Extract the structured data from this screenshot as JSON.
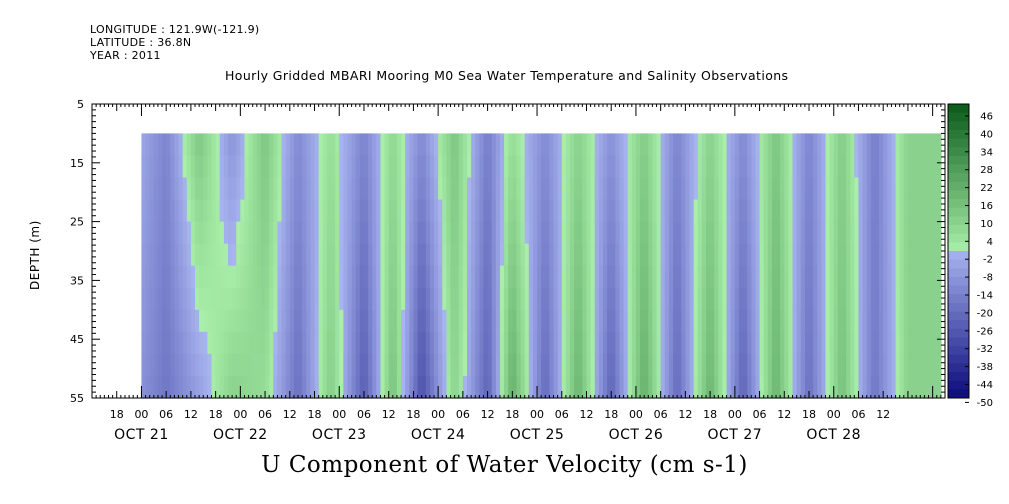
{
  "header": {
    "longitude": "LONGITUDE : 121.9W(-121.9)",
    "latitude": "LATITUDE : 36.8N",
    "year": "YEAR : 2011",
    "title": "Hourly Gridded MBARI Mooring M0 Sea Water Temperature and Salinity Observations"
  },
  "chart_data": {
    "type": "heatmap",
    "title": "Hourly Gridded MBARI Mooring M0 Sea Water Temperature and Salinity Observations",
    "variable_label": "U Component of Water Velocity (cm s-1)",
    "ylabel": "DEPTH (m)",
    "y_axis": {
      "range": [
        5,
        55
      ],
      "inverted": true,
      "ticks": [
        5,
        15,
        25,
        35,
        45,
        55
      ],
      "data_top": 10
    },
    "x_axis": {
      "start": "OCT 20 12:00",
      "end": "OCT 29 03:00",
      "data_start": "OCT 21 00:00",
      "hour_tick_labels": [
        "18",
        "00",
        "06",
        "12",
        "18",
        "00",
        "06",
        "12",
        "18",
        "00",
        "06",
        "12",
        "18",
        "00",
        "06",
        "12",
        "18",
        "00",
        "06",
        "12",
        "18",
        "00",
        "06",
        "12",
        "18",
        "00",
        "06",
        "12",
        "18",
        "00",
        "06",
        "12"
      ],
      "day_labels": [
        "OCT 21",
        "OCT 22",
        "OCT 23",
        "OCT 24",
        "OCT 25",
        "OCT 26",
        "OCT 27",
        "OCT 28"
      ]
    },
    "colorbar": {
      "min": -50,
      "max": 50,
      "tick_labels": [
        "46",
        "40",
        "34",
        "28",
        "22",
        "16",
        "10",
        "4",
        "-2",
        "-8",
        "-14",
        "-20",
        "-26",
        "-32",
        "-38",
        "-44",
        "-50"
      ],
      "low_color": "#0a0a7a",
      "mid_low_color": "#a8b4ef",
      "mid_high_color": "#a9efa9",
      "high_color": "#0a5a1a"
    },
    "velocity_pattern_by_time": [
      {
        "t": "OCT 21 00",
        "surface": -4,
        "bottom": -10
      },
      {
        "t": "OCT 21 06",
        "surface": -14,
        "bottom": -18
      },
      {
        "t": "OCT 21 14",
        "surface": 14,
        "bottom": -6
      },
      {
        "t": "OCT 21 22",
        "surface": -10,
        "bottom": 10
      },
      {
        "t": "OCT 22 06",
        "surface": 14,
        "bottom": 6
      },
      {
        "t": "OCT 22 14",
        "surface": -12,
        "bottom": -20
      },
      {
        "t": "OCT 22 22",
        "surface": 6,
        "bottom": 12
      },
      {
        "t": "OCT 23 06",
        "surface": -14,
        "bottom": -26
      },
      {
        "t": "OCT 23 13",
        "surface": 8,
        "bottom": 16
      },
      {
        "t": "OCT 23 20",
        "surface": -12,
        "bottom": -30
      },
      {
        "t": "OCT 24 04",
        "surface": 14,
        "bottom": 10
      },
      {
        "t": "OCT 24 12",
        "surface": -16,
        "bottom": -24
      },
      {
        "t": "OCT 24 18",
        "surface": 6,
        "bottom": 22
      },
      {
        "t": "OCT 25 02",
        "surface": -12,
        "bottom": -22
      },
      {
        "t": "OCT 25 10",
        "surface": 10,
        "bottom": 20
      },
      {
        "t": "OCT 25 18",
        "surface": -10,
        "bottom": -24
      },
      {
        "t": "OCT 26 02",
        "surface": 12,
        "bottom": 22
      },
      {
        "t": "OCT 26 10",
        "surface": -14,
        "bottom": -22
      },
      {
        "t": "OCT 26 18",
        "surface": 10,
        "bottom": 20
      },
      {
        "t": "OCT 27 02",
        "surface": -12,
        "bottom": -24
      },
      {
        "t": "OCT 27 10",
        "surface": 14,
        "bottom": 20
      },
      {
        "t": "OCT 27 18",
        "surface": -14,
        "bottom": -20
      },
      {
        "t": "OCT 28 02",
        "surface": 12,
        "bottom": 16
      },
      {
        "t": "OCT 28 10",
        "surface": -16,
        "bottom": -18
      },
      {
        "t": "OCT 28 18",
        "surface": 10,
        "bottom": 10
      }
    ]
  }
}
